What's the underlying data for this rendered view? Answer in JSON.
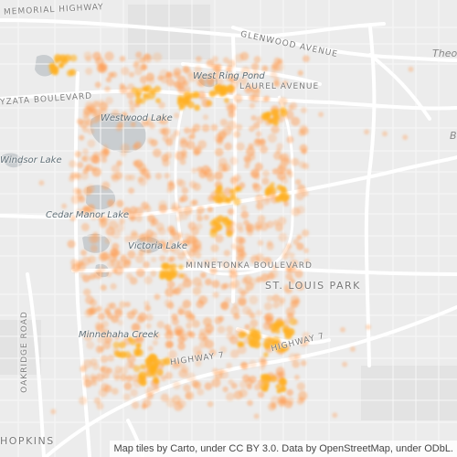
{
  "map": {
    "heat_color": "#ff9a4d",
    "hot_color": "#ffb020",
    "water_color": "#c9cdd0",
    "road_color": "#ffffff",
    "land_color": "#ececec"
  },
  "labels": {
    "memorial_highway": "MEMORIAL HIGHWAY",
    "glenwood_avenue": "GLENWOOD AVENUE",
    "west_ring_pond": "West Ring Pond",
    "laurel_avenue": "LAUREL AVENUE",
    "wayzata_boulevard": "YZATA BOULEVARD",
    "westwood_lake": "Westwood Lake",
    "windsor_lake": "Windsor Lake",
    "cedar_manor_lake": "Cedar Manor Lake",
    "victoria_lake": "Victoria Lake",
    "minnetonka_boulevard": "MINNETONKA BOULEVARD",
    "st_louis_park": "ST. LOUIS PARK",
    "oakridge_road": "OAKRIDGE ROAD",
    "minnehaha_creek": "Minnehaha Creek",
    "highway_7": "HIGHWAY 7",
    "hopkins": "HOPKINS",
    "theo": "Theo",
    "edge_b": "B"
  },
  "attribution": "Map tiles by Carto, under CC BY 3.0. Data by OpenStreetMap, under ODbL."
}
